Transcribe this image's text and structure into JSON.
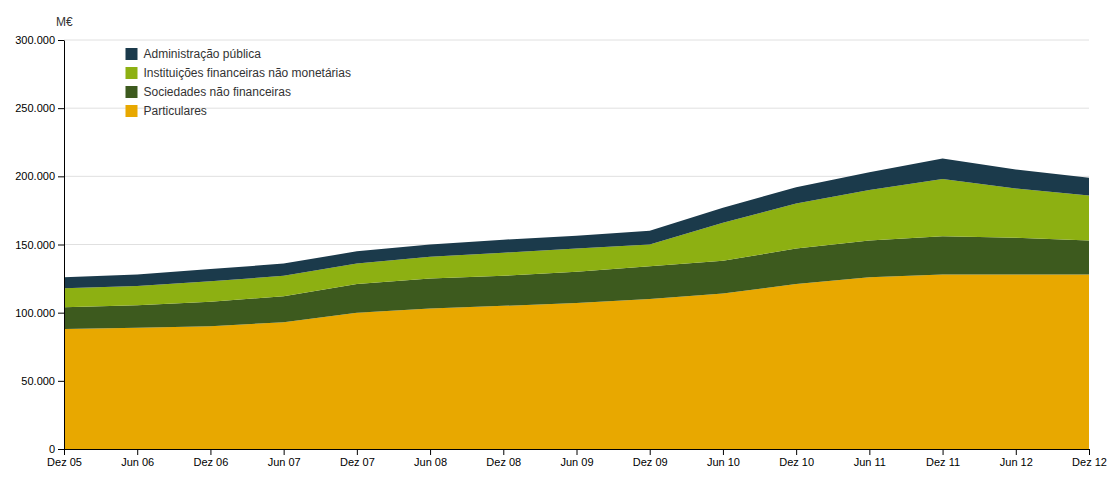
{
  "chart_data": {
    "type": "area",
    "stacked": true,
    "ylabel": "M€",
    "categories": [
      "Dez 05",
      "Jun 06",
      "Dez 06",
      "Jun 07",
      "Dez 07",
      "Jun 08",
      "Dez 08",
      "Jun 09",
      "Dez 09",
      "Jun 10",
      "Dez 10",
      "Jun 11",
      "Dez 11",
      "Jun 12",
      "Dez 12"
    ],
    "series": [
      {
        "name": "Particulares",
        "color": "#E8A800",
        "values": [
          88000,
          89000,
          90000,
          93000,
          100000,
          103000,
          105000,
          107000,
          110000,
          114000,
          121000,
          126000,
          128000,
          128000,
          128000
        ]
      },
      {
        "name": "Sociedades não financeiras",
        "color": "#3D5A1E",
        "values": [
          16000,
          16500,
          18000,
          19000,
          21000,
          22000,
          22000,
          23000,
          24000,
          24000,
          26000,
          27000,
          28000,
          27000,
          25000
        ]
      },
      {
        "name": "Instituições financeiras não monetárias",
        "color": "#8DB012",
        "values": [
          14000,
          14000,
          15000,
          15000,
          15000,
          16000,
          17000,
          17000,
          16000,
          28000,
          33000,
          37000,
          42000,
          36000,
          33000
        ]
      },
      {
        "name": "Administração pública",
        "color": "#1B3A4B",
        "values": [
          8000,
          8500,
          9000,
          9000,
          9000,
          9000,
          9500,
          9500,
          10000,
          11000,
          12000,
          13000,
          15000,
          14000,
          13000
        ]
      }
    ],
    "ylim": [
      0,
      300000
    ],
    "yticks": [
      0,
      {
        "value": 50000,
        "label": "50.000"
      },
      {
        "value": 100000,
        "label": "100.000"
      },
      {
        "value": 150000,
        "label": "150.000"
      },
      {
        "value": 200000,
        "label": "200.000"
      },
      {
        "value": 250000,
        "label": "250.000"
      },
      {
        "value": 300000,
        "label": "300.000"
      }
    ],
    "grid": true,
    "legend": "upper left"
  }
}
